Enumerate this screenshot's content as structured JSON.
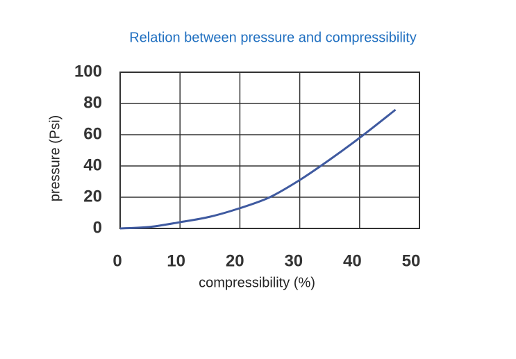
{
  "chart_data": {
    "type": "line",
    "title": "Relation between pressure and compressibility",
    "x_label": "compressibility (%)",
    "y_label": "pressure (Psi)",
    "x": [
      0,
      5,
      10,
      15,
      20,
      25,
      30,
      35,
      40,
      46
    ],
    "series": [
      {
        "color": "#3f5aa0",
        "values": [
          0,
          1,
          4,
          7.5,
          13,
          20,
          31,
          44,
          58,
          76
        ]
      }
    ],
    "xlim": [
      0,
      50
    ],
    "xticks": [
      0,
      10,
      20,
      30,
      40,
      50
    ],
    "ylim": [
      0,
      100
    ],
    "yticks": [
      0,
      20,
      40,
      60,
      80,
      100
    ],
    "grid": true,
    "title_color": "#1f6fc0"
  }
}
